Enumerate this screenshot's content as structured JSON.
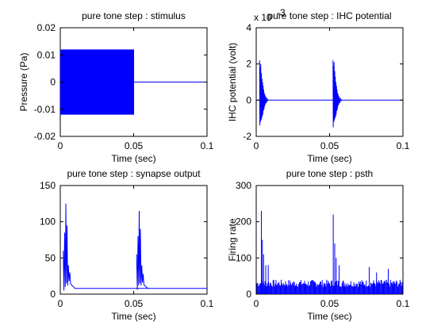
{
  "figure": {
    "background": "#ffffff",
    "line_color": "#0000ff",
    "axes_color": "#000000"
  },
  "chart_data": [
    {
      "type": "area",
      "title": "pure tone step : stimulus",
      "xlabel": "Time (sec)",
      "ylabel": "Pressure (Pa)",
      "xlim": [
        0,
        0.1
      ],
      "ylim": [
        -0.02,
        0.02
      ],
      "xticks": [
        0,
        0.05,
        0.1
      ],
      "xtick_labels": [
        "0",
        "0.05",
        "0.1"
      ],
      "yticks": [
        -0.02,
        -0.01,
        0,
        0.01,
        0.02
      ],
      "ytick_labels": [
        "-0.02",
        "-0.01",
        "0",
        "0.01",
        "0.02"
      ],
      "exponent_label": "",
      "series": [
        {
          "x": [
            0,
            0.05
          ],
          "y_max": 0.012,
          "y_min": -0.012,
          "kind": "band"
        },
        {
          "x": [
            0.05,
            0.1
          ],
          "y": [
            0,
            0
          ],
          "kind": "line"
        }
      ]
    },
    {
      "type": "line",
      "title": "pure tone step : IHC potential",
      "xlabel": "Time (sec)",
      "ylabel": "IHC potential (volt)",
      "xlim": [
        0,
        0.1
      ],
      "ylim": [
        -2,
        4
      ],
      "xticks": [
        0,
        0.05,
        0.1
      ],
      "xtick_labels": [
        "0",
        "0.05",
        "0.1"
      ],
      "yticks": [
        -2,
        0,
        2,
        4
      ],
      "ytick_labels": [
        "-2",
        "0",
        "2",
        "4"
      ],
      "exponent_label": "x 10",
      "exponent_power": "-3",
      "series": [
        {
          "x": [
            0,
            0.1
          ],
          "y": [
            0,
            0
          ],
          "kind": "baseline"
        },
        {
          "x": [
            0.0023,
            0.0025,
            0.0027,
            0.0029,
            0.0031,
            0.0033,
            0.0035,
            0.0037,
            0.0039,
            0.0041,
            0.0043,
            0.0045,
            0.0047,
            0.0049,
            0.0051,
            0.0053,
            0.0055,
            0.0057,
            0.0059,
            0.0062,
            0.0066,
            0.007,
            0.0075,
            0.008
          ],
          "y": [
            2.2,
            -1.4,
            1.8,
            -1.2,
            2.0,
            -1.0,
            1.5,
            -1.1,
            1.2,
            -0.9,
            1.0,
            -0.8,
            0.8,
            -0.6,
            0.6,
            -0.5,
            0.4,
            -0.35,
            0.3,
            -0.25,
            0.2,
            -0.15,
            0.1,
            -0.05
          ],
          "kind": "burst"
        },
        {
          "x": [
            0.0523,
            0.0525,
            0.0527,
            0.0529,
            0.0531,
            0.0533,
            0.0535,
            0.0537,
            0.0539,
            0.0541,
            0.0543,
            0.0545,
            0.0547,
            0.0549,
            0.0551,
            0.0553,
            0.0555,
            0.0557,
            0.0559,
            0.0562,
            0.0566,
            0.057,
            0.0575,
            0.058
          ],
          "y": [
            2.2,
            -1.5,
            1.9,
            -1.2,
            2.1,
            -1.1,
            1.6,
            -1.0,
            1.3,
            -0.9,
            1.0,
            -0.8,
            0.8,
            -0.6,
            0.6,
            -0.5,
            0.4,
            -0.35,
            0.3,
            -0.25,
            0.2,
            -0.15,
            0.1,
            -0.05
          ],
          "kind": "burst"
        }
      ]
    },
    {
      "type": "line",
      "title": "pure tone step : synapse output",
      "xlabel": "Time (sec)",
      "ylabel": "",
      "xlim": [
        0,
        0.1
      ],
      "ylim": [
        0,
        150
      ],
      "xticks": [
        0,
        0.05,
        0.1
      ],
      "xtick_labels": [
        "0",
        "0.05",
        "0.1"
      ],
      "yticks": [
        0,
        50,
        100,
        150
      ],
      "ytick_labels": [
        "0",
        "50",
        "100",
        "150"
      ],
      "exponent_label": "",
      "series": [
        {
          "x": [
            0.002,
            0.0025,
            0.003,
            0.0034,
            0.0038,
            0.0042,
            0.0046,
            0.005,
            0.0055,
            0.006,
            0.0065,
            0.007,
            0.008,
            0.009,
            0.01,
            0.1
          ],
          "y": [
            60,
            5,
            85,
            10,
            125,
            15,
            95,
            12,
            40,
            18,
            30,
            14,
            12,
            10,
            8,
            8
          ],
          "kind": "spiky"
        },
        {
          "x": [
            0.052,
            0.0525,
            0.053,
            0.0534,
            0.0538,
            0.0542,
            0.0546,
            0.055,
            0.0555,
            0.056,
            0.0565,
            0.057,
            0.058,
            0.059,
            0.06
          ],
          "y": [
            55,
            6,
            80,
            12,
            115,
            15,
            90,
            12,
            40,
            16,
            28,
            13,
            11,
            9,
            8
          ],
          "kind": "spiky"
        }
      ]
    },
    {
      "type": "bar",
      "title": "pure tone step : psth",
      "xlabel": "Time (sec)",
      "ylabel": "Firing rate",
      "xlim": [
        0,
        0.1
      ],
      "ylim": [
        0,
        300
      ],
      "xticks": [
        0,
        0.05,
        0.1
      ],
      "xtick_labels": [
        "0",
        "0.05",
        "0.1"
      ],
      "yticks": [
        0,
        100,
        200,
        300
      ],
      "ytick_labels": [
        "0",
        "100",
        "200",
        "300"
      ],
      "exponent_label": "",
      "baseline_rate": 40,
      "peaks": [
        {
          "x": 0.0035,
          "y": 230
        },
        {
          "x": 0.0042,
          "y": 150
        },
        {
          "x": 0.005,
          "y": 110
        },
        {
          "x": 0.0065,
          "y": 80
        },
        {
          "x": 0.0082,
          "y": 80
        },
        {
          "x": 0.0525,
          "y": 220
        },
        {
          "x": 0.0535,
          "y": 140
        },
        {
          "x": 0.0545,
          "y": 100
        },
        {
          "x": 0.0565,
          "y": 80
        },
        {
          "x": 0.077,
          "y": 75
        },
        {
          "x": 0.082,
          "y": 60
        },
        {
          "x": 0.09,
          "y": 70
        }
      ]
    }
  ]
}
